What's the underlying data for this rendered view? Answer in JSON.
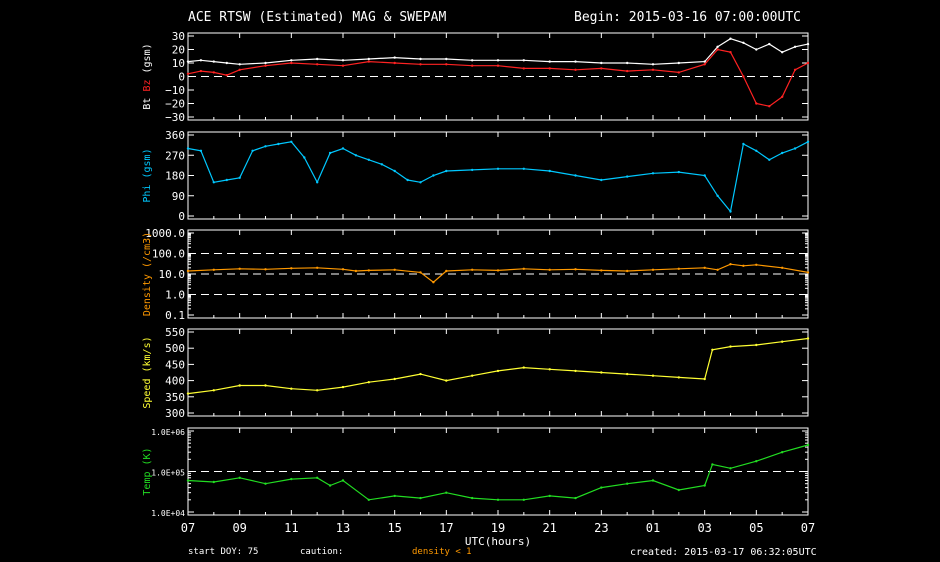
{
  "header": {
    "title": "ACE RTSW (Estimated) MAG & SWEPAM",
    "begin": "Begin: 2015-03-16 07:00:00UTC"
  },
  "footer": {
    "start_doy": "start DOY:  75",
    "caution": "caution:",
    "density_note": "density < 1",
    "created": "created: 2015-03-17 06:32:05UTC"
  },
  "chart_data": {
    "type": "line",
    "xlabel": "UTC(hours)",
    "x_ticks": [
      "07",
      "09",
      "11",
      "13",
      "15",
      "17",
      "19",
      "21",
      "23",
      "01",
      "03",
      "05",
      "07"
    ],
    "panels": [
      {
        "id": "mag",
        "ylabel_parts": [
          {
            "text": "Bt",
            "color": "#ffffff"
          },
          {
            "text": "Bz",
            "color": "#ff2222"
          },
          {
            "text": "(gsm)",
            "color": "#ffffff"
          }
        ],
        "ticks": [
          "30",
          "20",
          "10",
          "0",
          "−10",
          "−20",
          "−30"
        ],
        "ylim": [
          -30,
          30
        ],
        "ref_lines": [
          0
        ],
        "series": [
          {
            "name": "Bt",
            "color": "#ffffff",
            "x": [
              0,
              0.5,
              1.0,
              1.5,
              2.0,
              3.0,
              4.0,
              5.0,
              6.0,
              7.0,
              8.0,
              9.0,
              10.0,
              11.0,
              12.0,
              13.0,
              14.0,
              15.0,
              16.0,
              17.0,
              18.0,
              19.0,
              20.0,
              20.5,
              21.0,
              21.5,
              22.0,
              22.5,
              23.0,
              23.5,
              24.0
            ],
            "y": [
              11,
              12,
              11,
              10,
              9,
              10,
              12,
              13,
              12,
              13,
              14,
              13,
              13,
              12,
              12,
              12,
              11,
              11,
              10,
              10,
              9,
              10,
              11,
              22,
              28,
              25,
              20,
              24,
              18,
              22,
              24
            ]
          },
          {
            "name": "Bz",
            "color": "#ff2222",
            "x": [
              0,
              0.5,
              1.0,
              1.5,
              2.0,
              3.0,
              4.0,
              5.0,
              6.0,
              7.0,
              8.0,
              9.0,
              10.0,
              11.0,
              12.0,
              13.0,
              14.0,
              15.0,
              16.0,
              17.0,
              18.0,
              19.0,
              20.0,
              20.5,
              21.0,
              21.5,
              22.0,
              22.5,
              23.0,
              23.5,
              24.0
            ],
            "y": [
              2,
              4,
              3,
              1,
              5,
              8,
              10,
              9,
              8,
              11,
              10,
              9,
              9,
              8,
              8,
              6,
              6,
              5,
              6,
              4,
              5,
              3,
              9,
              20,
              18,
              0,
              -20,
              -22,
              -15,
              5,
              10
            ]
          }
        ]
      },
      {
        "id": "phi",
        "ylabel_parts": [
          {
            "text": "Phi (gsm)",
            "color": "#00c8ff"
          }
        ],
        "ticks": [
          "360",
          "270",
          "180",
          "90",
          "0"
        ],
        "ylim": [
          0,
          360
        ],
        "ref_lines": [],
        "series": [
          {
            "name": "Phi",
            "color": "#00c8ff",
            "x": [
              0,
              0.5,
              1.0,
              1.5,
              2.0,
              2.5,
              3.0,
              3.5,
              4.0,
              4.5,
              5.0,
              5.5,
              6.0,
              6.5,
              7.0,
              7.5,
              8.0,
              8.5,
              9.0,
              9.5,
              10.0,
              11.0,
              12.0,
              13.0,
              14.0,
              15.0,
              16.0,
              17.0,
              18.0,
              19.0,
              20.0,
              20.5,
              21.0,
              21.5,
              22.0,
              22.5,
              23.0,
              23.5,
              24.0
            ],
            "y": [
              300,
              290,
              150,
              160,
              170,
              290,
              310,
              320,
              330,
              260,
              150,
              280,
              300,
              270,
              250,
              230,
              200,
              160,
              150,
              180,
              200,
              205,
              210,
              210,
              200,
              180,
              160,
              175,
              190,
              195,
              180,
              90,
              20,
              320,
              290,
              250,
              280,
              300,
              330
            ]
          }
        ]
      },
      {
        "id": "density",
        "ylabel_parts": [
          {
            "text": "Density (/cm3)",
            "color": "#ff9900"
          }
        ],
        "ticks": [
          "1000.0",
          "100.0",
          "10.0",
          "1.0",
          "0.1"
        ],
        "ylim": [
          0.1,
          1000
        ],
        "scale": "log",
        "ref_lines": [
          1,
          10,
          100
        ],
        "series": [
          {
            "name": "Density",
            "color": "#ff9900",
            "x": [
              0,
              1,
              2,
              3,
              4,
              5,
              6,
              6.5,
              7,
              8,
              9,
              9.5,
              10,
              11,
              12,
              13,
              14,
              15,
              16,
              17,
              18,
              19,
              20,
              20.5,
              21,
              21.5,
              22,
              23,
              24
            ],
            "y": [
              14,
              16,
              18,
              17,
              19,
              20,
              17,
              14,
              15,
              16,
              12,
              4,
              14,
              16,
              15,
              18,
              16,
              17,
              15,
              14,
              16,
              18,
              20,
              16,
              30,
              25,
              28,
              20,
              12
            ]
          }
        ]
      },
      {
        "id": "speed",
        "ylabel_parts": [
          {
            "text": "Speed (km/s)",
            "color": "#ffff33"
          }
        ],
        "ticks": [
          "550",
          "500",
          "450",
          "400",
          "350",
          "300"
        ],
        "ylim": [
          300,
          550
        ],
        "ref_lines": [],
        "series": [
          {
            "name": "Speed",
            "color": "#ffff33",
            "x": [
              0,
              1,
              2,
              3,
              4,
              5,
              6,
              7,
              8,
              9,
              10,
              11,
              12,
              13,
              14,
              15,
              16,
              17,
              18,
              19,
              20,
              20.3,
              21,
              22,
              23,
              24
            ],
            "y": [
              360,
              370,
              385,
              385,
              375,
              370,
              380,
              395,
              405,
              420,
              400,
              415,
              430,
              440,
              435,
              430,
              425,
              420,
              415,
              410,
              405,
              495,
              505,
              510,
              520,
              530
            ]
          }
        ]
      },
      {
        "id": "temp",
        "ylabel_parts": [
          {
            "text": "Temp (K)",
            "color": "#22dd22"
          }
        ],
        "ticks": [
          "1.0E+06",
          "1.0E+05",
          "1.0E+04"
        ],
        "ylim": [
          10000,
          1000000
        ],
        "scale": "log",
        "ref_lines": [
          100000
        ],
        "series": [
          {
            "name": "Temp",
            "color": "#22dd22",
            "x": [
              0,
              1,
              2,
              3,
              4,
              5,
              5.5,
              6,
              7,
              8,
              9,
              10,
              11,
              12,
              13,
              14,
              15,
              16,
              17,
              18,
              19,
              20,
              20.3,
              21,
              22,
              23,
              24
            ],
            "y": [
              60000,
              55000,
              70000,
              50000,
              65000,
              70000,
              45000,
              60000,
              20000,
              25000,
              22000,
              30000,
              22000,
              20000,
              20000,
              25000,
              22000,
              40000,
              50000,
              60000,
              35000,
              45000,
              150000,
              120000,
              180000,
              300000,
              450000
            ]
          }
        ]
      }
    ]
  }
}
